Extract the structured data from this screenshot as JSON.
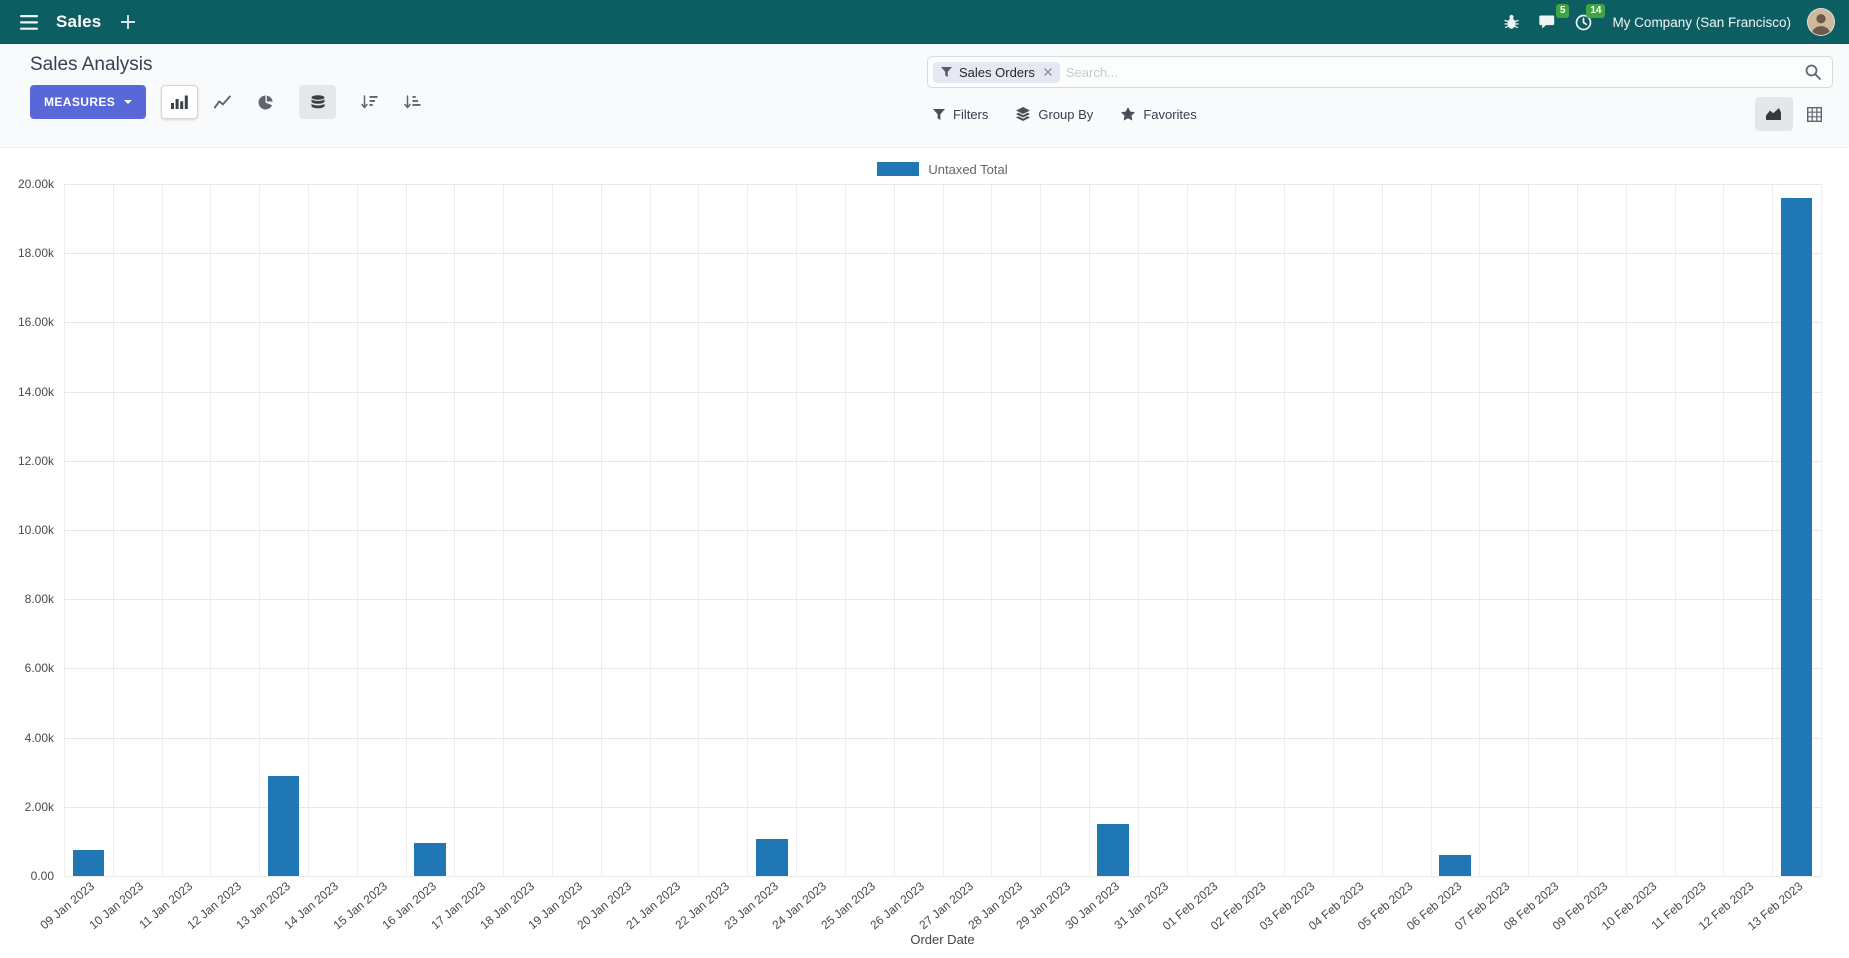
{
  "navbar": {
    "app_label": "Sales",
    "message_count": "5",
    "activity_count": "14",
    "company": "My Company (San Francisco)"
  },
  "control_panel": {
    "breadcrumb": "Sales Analysis",
    "measures_label": "MEASURES",
    "search": {
      "facet_label": "Sales Orders",
      "placeholder": "Search..."
    },
    "filters_label": "Filters",
    "group_by_label": "Group By",
    "favorites_label": "Favorites"
  },
  "chart_data": {
    "type": "bar",
    "title": "",
    "xlabel": "Order Date",
    "ylabel": "",
    "ylim": [
      0,
      20000
    ],
    "grid": true,
    "legend_position": "top",
    "ytick_labels": [
      "0.00",
      "2.00k",
      "4.00k",
      "6.00k",
      "8.00k",
      "10.00k",
      "12.00k",
      "14.00k",
      "16.00k",
      "18.00k",
      "20.00k"
    ],
    "categories": [
      "09 Jan 2023",
      "10 Jan 2023",
      "11 Jan 2023",
      "12 Jan 2023",
      "13 Jan 2023",
      "14 Jan 2023",
      "15 Jan 2023",
      "16 Jan 2023",
      "17 Jan 2023",
      "18 Jan 2023",
      "19 Jan 2023",
      "20 Jan 2023",
      "21 Jan 2023",
      "22 Jan 2023",
      "23 Jan 2023",
      "24 Jan 2023",
      "25 Jan 2023",
      "26 Jan 2023",
      "27 Jan 2023",
      "28 Jan 2023",
      "29 Jan 2023",
      "30 Jan 2023",
      "31 Jan 2023",
      "01 Feb 2023",
      "02 Feb 2023",
      "03 Feb 2023",
      "04 Feb 2023",
      "05 Feb 2023",
      "06 Feb 2023",
      "07 Feb 2023",
      "08 Feb 2023",
      "09 Feb 2023",
      "10 Feb 2023",
      "11 Feb 2023",
      "12 Feb 2023",
      "13 Feb 2023"
    ],
    "series": [
      {
        "name": "Untaxed Total",
        "color": "#1f77b4",
        "values": [
          750,
          0,
          0,
          0,
          2900,
          0,
          0,
          950,
          0,
          0,
          0,
          0,
          0,
          0,
          1080,
          0,
          0,
          0,
          0,
          0,
          0,
          1490,
          0,
          0,
          0,
          0,
          0,
          0,
          620,
          0,
          0,
          0,
          0,
          0,
          0,
          19600
        ]
      }
    ]
  }
}
